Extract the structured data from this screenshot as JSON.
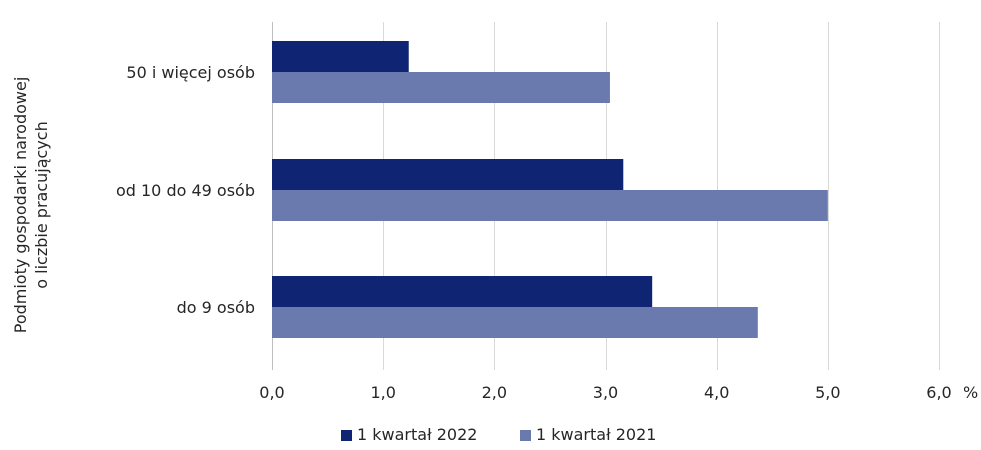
{
  "chart_data": {
    "type": "bar",
    "orientation": "horizontal",
    "categories": [
      "50 i więcej osób",
      "od 10 do 49 osób",
      "do 9 osób"
    ],
    "series": [
      {
        "name": "1 kwartał 2022",
        "color": "#0f2472",
        "values": [
          1.23,
          3.16,
          3.42
        ]
      },
      {
        "name": "1 kwartał 2021",
        "color": "#6a7aaf",
        "values": [
          3.04,
          5.0,
          4.37
        ]
      }
    ],
    "xlim": [
      0,
      6
    ],
    "xticks": [
      "0,0",
      "1,0",
      "2,0",
      "3,0",
      "4,0",
      "5,0",
      "6,0"
    ],
    "xunit": "%",
    "ylabel_lines": [
      "Podmioty gospodarki narodowej",
      "o liczbie pracujących"
    ],
    "grid": true,
    "legend_position": "bottom"
  }
}
